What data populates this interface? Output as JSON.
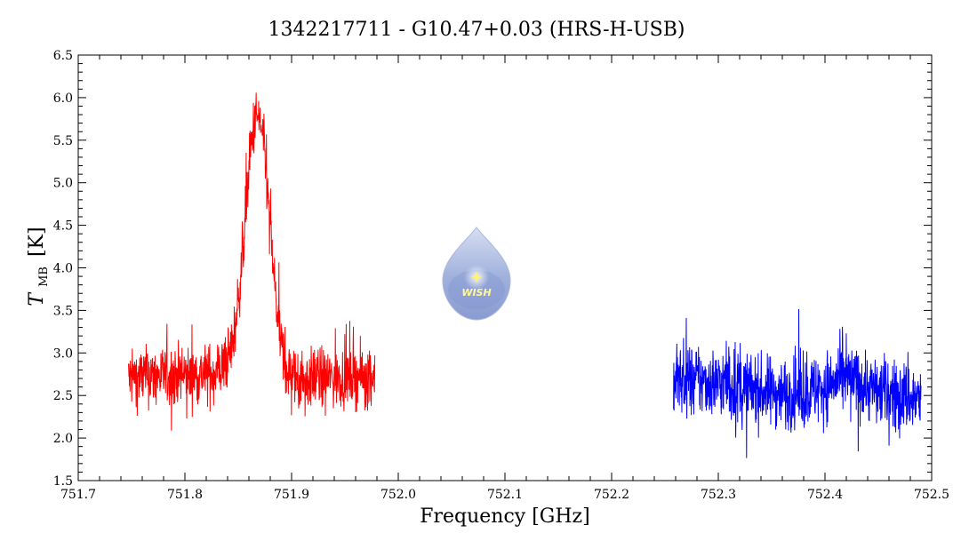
{
  "chart_data": {
    "type": "line",
    "title": "1342217711 - G10.47+0.03 (HRS-H-USB)",
    "xlabel": "Frequency [GHz]",
    "ylabel_main": "T",
    "ylabel_sub": "MB",
    "ylabel_unit": "[K]",
    "xlim": [
      751.7,
      752.5
    ],
    "ylim": [
      1.5,
      6.5
    ],
    "x_ticks": [
      "751.7",
      "751.8",
      "751.9",
      "752.0",
      "752.1",
      "752.2",
      "752.3",
      "752.4",
      "752.5"
    ],
    "y_ticks": [
      "1.5",
      "2.0",
      "2.5",
      "3.0",
      "3.5",
      "4.0",
      "4.5",
      "5.0",
      "5.5",
      "6.0",
      "6.5"
    ],
    "series": [
      {
        "color": "#ff0000",
        "x_range": [
          751.747,
          751.978
        ],
        "baseline": 2.72,
        "noise": 0.17,
        "peak": {
          "center": 751.868,
          "amplitude": 3.05,
          "width": 0.0105
        },
        "points": [
          [
            751.75,
            2.65
          ],
          [
            751.77,
            2.75
          ],
          [
            751.79,
            2.78
          ],
          [
            751.81,
            2.8
          ],
          [
            751.83,
            2.9
          ],
          [
            751.845,
            3.35
          ],
          [
            751.855,
            4.2
          ],
          [
            751.862,
            5.2
          ],
          [
            751.868,
            5.8
          ],
          [
            751.874,
            5.2
          ],
          [
            751.88,
            4.0
          ],
          [
            751.888,
            3.1
          ],
          [
            751.9,
            2.6
          ],
          [
            751.92,
            2.6
          ],
          [
            751.94,
            2.7
          ],
          [
            751.96,
            2.75
          ],
          [
            751.978,
            2.7
          ]
        ]
      },
      {
        "color": "#0000ff",
        "x_range": [
          752.258,
          752.49
        ],
        "baseline": 2.62,
        "noise": 0.2,
        "points": [
          [
            752.26,
            2.68
          ],
          [
            752.3,
            2.65
          ],
          [
            752.34,
            2.55
          ],
          [
            752.38,
            2.52
          ],
          [
            752.42,
            2.7
          ],
          [
            752.45,
            2.55
          ],
          [
            752.49,
            2.45
          ]
        ]
      }
    ]
  },
  "logo": {
    "text": "WISH"
  }
}
